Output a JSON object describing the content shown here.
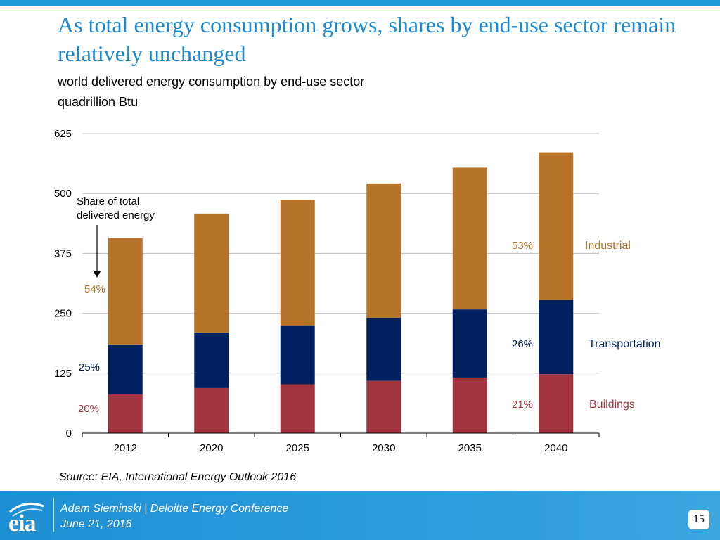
{
  "header": {
    "title": "As total energy consumption grows, shares by end-use sector remain relatively unchanged",
    "subtitle": "world delivered energy consumption by end-use sector",
    "unit": "quadrillion Btu"
  },
  "chart_data": {
    "type": "bar",
    "stacked": true,
    "categories": [
      "2012",
      "2020",
      "2025",
      "2030",
      "2035",
      "2040"
    ],
    "series": [
      {
        "name": "Buildings",
        "color": "#a2343f",
        "values": [
          81,
          94,
          102,
          109,
          116,
          123
        ]
      },
      {
        "name": "Transportation",
        "color": "#002060",
        "values": [
          104,
          116,
          123,
          132,
          142,
          155
        ]
      },
      {
        "name": "Industrial",
        "color": "#b8732a",
        "values": [
          222,
          248,
          262,
          280,
          296,
          308
        ]
      }
    ],
    "ylim": [
      0,
      625
    ],
    "yticks": [
      "0",
      "125",
      "250",
      "375",
      "500",
      "625"
    ],
    "grid": true,
    "annotations": {
      "share_label": "Share of total delivered energy",
      "start_shares": {
        "industrial": "54%",
        "transportation": "25%",
        "buildings": "20%"
      },
      "end_shares": {
        "industrial": "53%",
        "transportation": "26%",
        "buildings": "21%"
      },
      "legend": {
        "industrial": "Industrial",
        "transportation": "Transportation",
        "buildings": "Buildings"
      }
    }
  },
  "source": "Source:  EIA, International Energy Outlook 2016",
  "footer": {
    "logo": "eia",
    "line1": "Adam Sieminski | Deloitte Energy Conference",
    "line2": "June 21, 2016",
    "page": "15"
  }
}
